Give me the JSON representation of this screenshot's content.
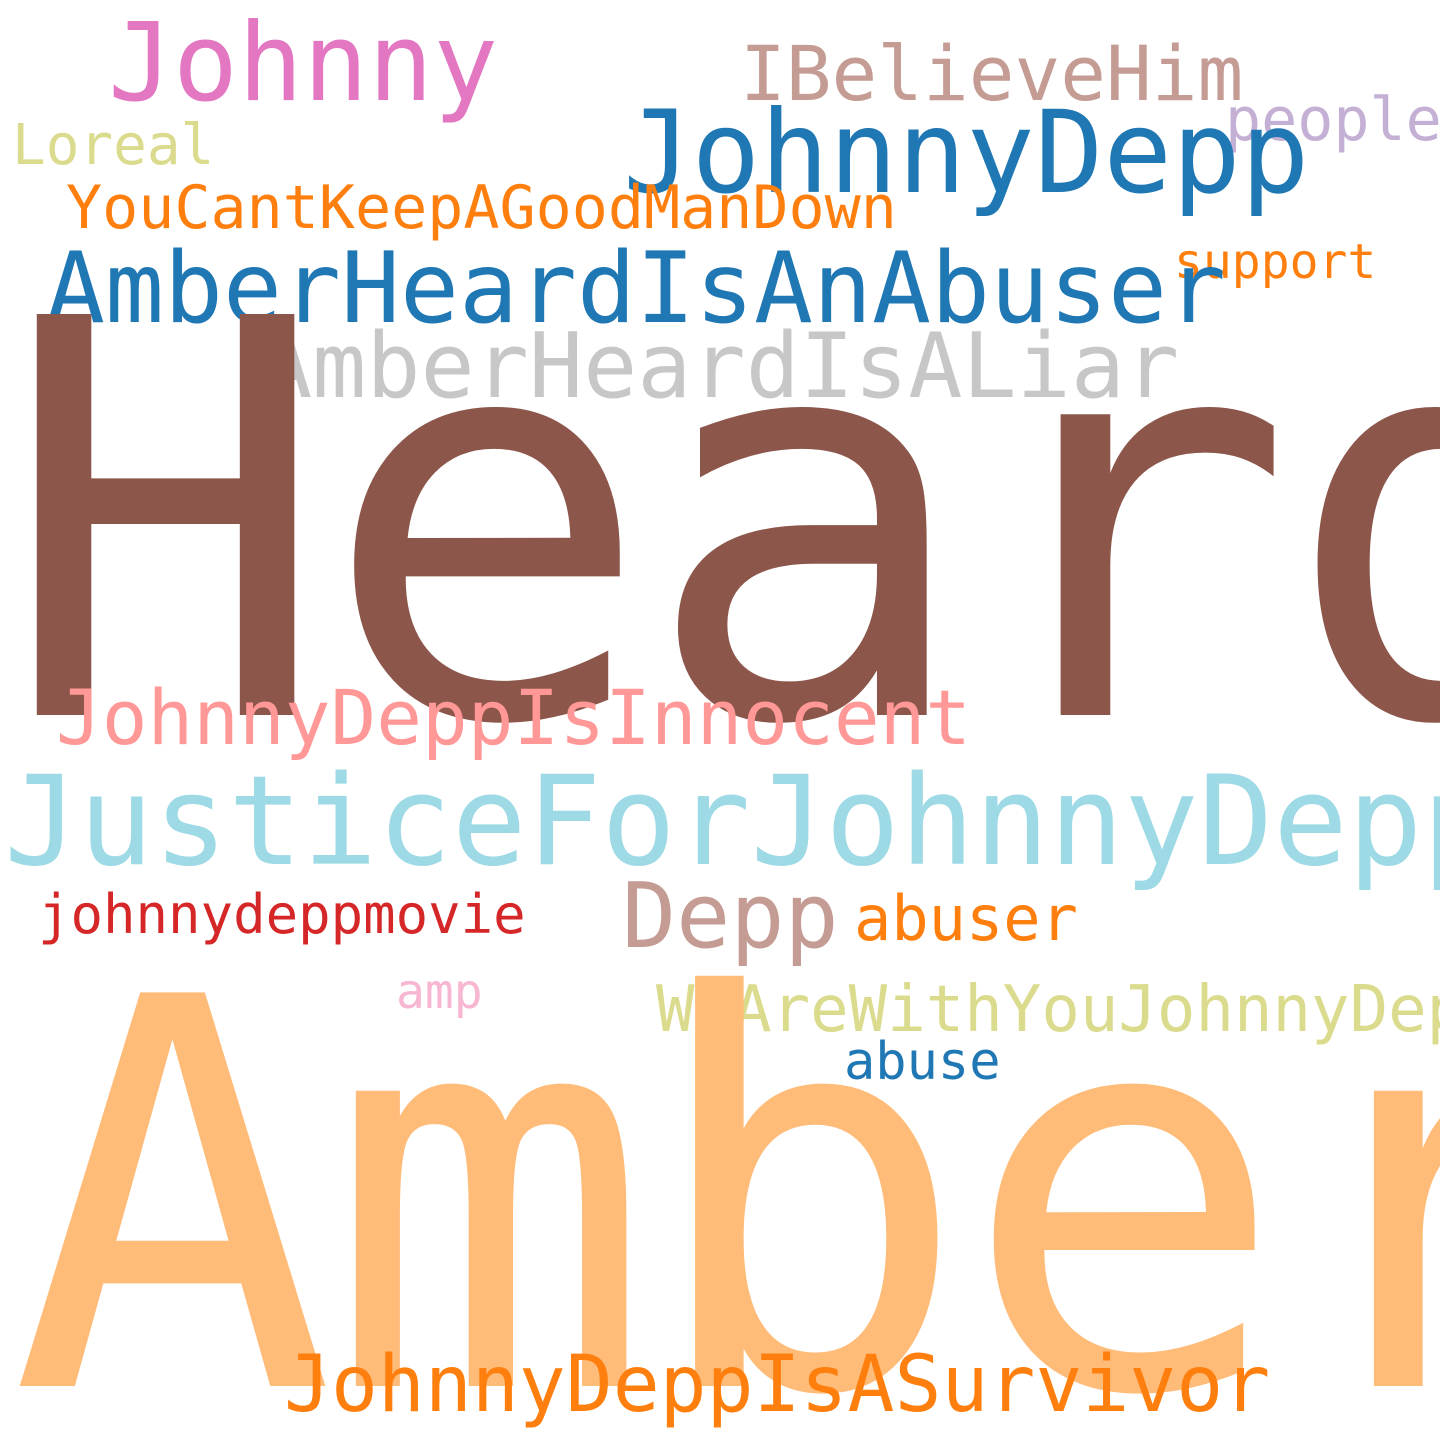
{
  "words": [
    {
      "key": "johnny",
      "text": "Johnny",
      "color": "#e377c2"
    },
    {
      "key": "ibelievehim",
      "text": "IBelieveHim",
      "color": "#c49c94"
    },
    {
      "key": "people",
      "text": "people",
      "color": "#c5b0d5"
    },
    {
      "key": "loreal",
      "text": "Loreal",
      "color": "#dbdb8d"
    },
    {
      "key": "johnnydepp",
      "text": "JohnnyDepp",
      "color": "#1f77b4"
    },
    {
      "key": "youcant",
      "text": "YouCantKeepAGoodManDown",
      "color": "#ff7f0e"
    },
    {
      "key": "support",
      "text": "support",
      "color": "#ff7f0e"
    },
    {
      "key": "abuserlong",
      "text": "AmberHeardIsAnAbuser",
      "color": "#1f77b4"
    },
    {
      "key": "liar",
      "text": "AmberHeardIsALiar",
      "color": "#c7c7c7"
    },
    {
      "key": "heard",
      "text": "Heard",
      "color": "#8c564b"
    },
    {
      "key": "innocent",
      "text": "JohnnyDeppIsInnocent",
      "color": "#ff9896"
    },
    {
      "key": "justice",
      "text": "JusticeForJohnnyDepp",
      "color": "#9edae5"
    },
    {
      "key": "movie",
      "text": "johnnydeppmovie",
      "color": "#d62728"
    },
    {
      "key": "depp",
      "text": "Depp",
      "color": "#c49c94"
    },
    {
      "key": "abuser",
      "text": "abuser",
      "color": "#ff7f0e"
    },
    {
      "key": "amp",
      "text": "amp",
      "color": "#f7b6d2"
    },
    {
      "key": "weare",
      "text": "WeAreWithYouJohnnyDepp",
      "color": "#dbdb8d"
    },
    {
      "key": "abuse",
      "text": "abuse",
      "color": "#1f77b4"
    },
    {
      "key": "amber",
      "text": "Amber",
      "color": "#ffbb78"
    },
    {
      "key": "survivor",
      "text": "JohnnyDeppIsASurvivor",
      "color": "#ff7f0e"
    }
  ]
}
